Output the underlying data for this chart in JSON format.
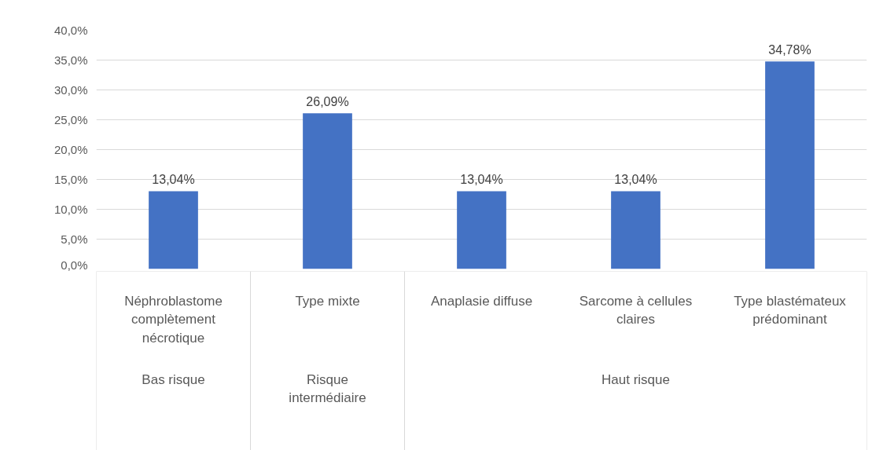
{
  "chart_data": {
    "type": "bar",
    "categories": [
      "Néphroblastome complètement nécrotique",
      "Type mixte",
      "Anaplasie diffuse",
      "Sarcome à cellules claires",
      "Type blastémateux prédominant"
    ],
    "values": [
      13.04,
      26.09,
      13.04,
      13.04,
      34.78
    ],
    "value_labels": [
      "13,04%",
      "26,09%",
      "13,04%",
      "13,04%",
      "34,78%"
    ],
    "color": "#4472c4",
    "ylim": [
      0,
      40
    ],
    "yticks": [
      {
        "value": 0,
        "label": "0,0%"
      },
      {
        "value": 5,
        "label": "5,0%"
      },
      {
        "value": 10,
        "label": "10,0%"
      },
      {
        "value": 15,
        "label": "15,0%"
      },
      {
        "value": 20,
        "label": "20,0%"
      },
      {
        "value": 25,
        "label": "25,0%"
      },
      {
        "value": 30,
        "label": "30,0%"
      },
      {
        "value": 35,
        "label": "35,0%"
      },
      {
        "value": 40,
        "label": "40,0%"
      }
    ],
    "grid": "y",
    "annotations": [
      "Bas risque",
      "Risque intermédiaire",
      "Haut risque"
    ]
  }
}
